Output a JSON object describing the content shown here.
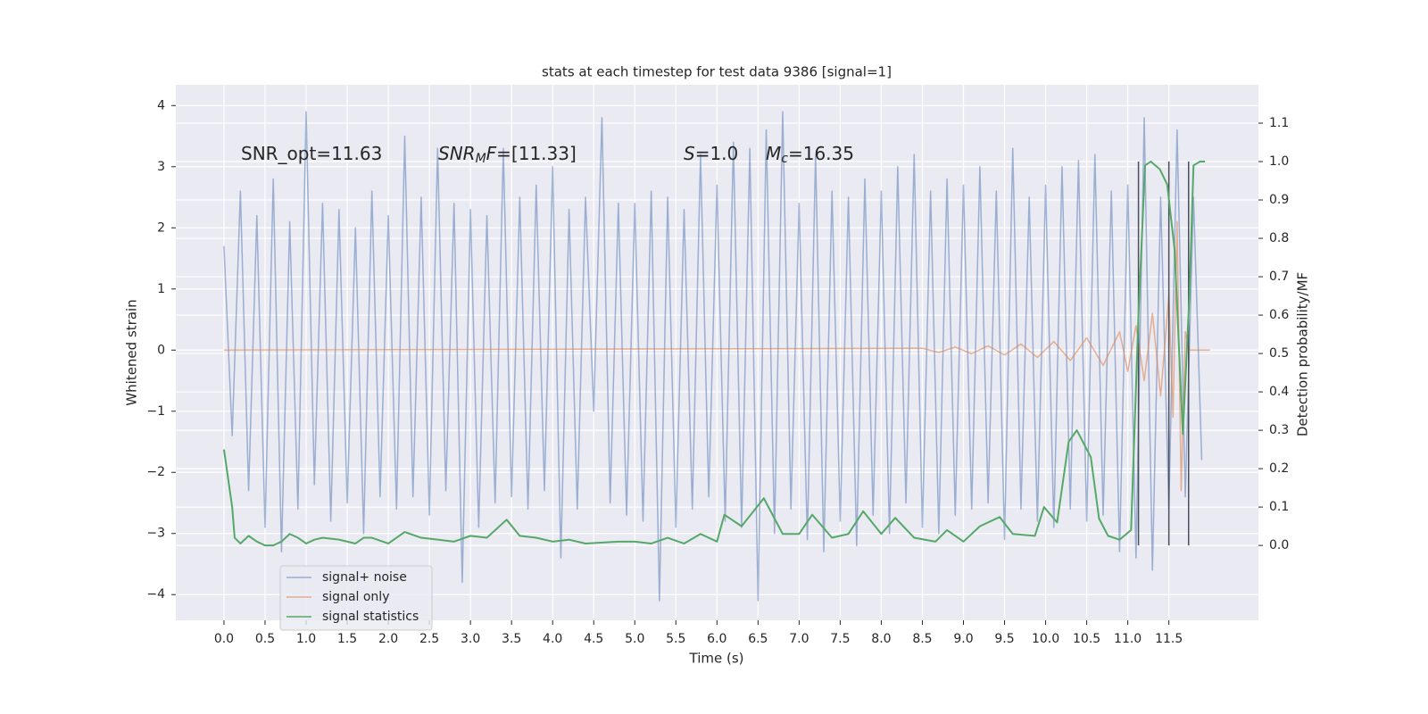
{
  "chart_data": {
    "type": "line",
    "title": "stats at each timestep for test data 9386 [signal=1]",
    "xlabel": "Time (s)",
    "ylabel": "Whitened strain",
    "y2label": "Detection probability/MF",
    "xlim": [
      -0.586,
      12.59
    ],
    "ylim": [
      -4.42,
      4.34
    ],
    "y2lim": [
      -0.195,
      1.2
    ],
    "xticks": [
      {
        "value": 0,
        "label": "0.0"
      },
      0.5,
      {
        "value": 1,
        "label": "1.0"
      },
      1.5,
      {
        "value": 2,
        "label": "2.0"
      },
      2.5,
      {
        "value": 3,
        "label": "3.0"
      },
      3.5,
      {
        "value": 4,
        "label": "4.0"
      },
      4.5,
      {
        "value": 5,
        "label": "5.0"
      },
      5.5,
      {
        "value": 6,
        "label": "6.0"
      },
      6.5,
      {
        "value": 7,
        "label": "7.0"
      },
      7.5,
      {
        "value": 8,
        "label": "8.0"
      },
      8.5,
      {
        "value": 9,
        "label": "9.0"
      },
      9.5,
      {
        "value": 10,
        "label": "10.0"
      },
      10.5,
      {
        "value": 11,
        "label": "11.0"
      },
      11.5
    ],
    "yticks": [
      {
        "value": -4,
        "label": "−4"
      },
      {
        "value": -3,
        "label": "−3"
      },
      {
        "value": -2,
        "label": "−2"
      },
      {
        "value": -1,
        "label": "−1"
      },
      0,
      1,
      2,
      3,
      4
    ],
    "y2ticks": [
      {
        "value": 0,
        "label": "0.0"
      },
      0.1,
      0.2,
      0.3,
      0.4,
      0.5,
      0.6,
      0.7,
      0.8,
      0.9,
      {
        "value": 1,
        "label": "1.0"
      },
      1.1
    ],
    "grid": true,
    "legend": "lower left",
    "series": [
      {
        "name": "signal+ noise",
        "color": "#4c72b0",
        "opacity": 0.5,
        "x": [
          0,
          0.1,
          0.2,
          0.3,
          0.4,
          0.5,
          0.6,
          0.7,
          0.8,
          0.9,
          1,
          1.1,
          1.2,
          1.3,
          1.4,
          1.5,
          1.6,
          1.7,
          1.8,
          1.9,
          2,
          2.1,
          2.2,
          2.3,
          2.4,
          2.5,
          2.6,
          2.7,
          2.8,
          2.9,
          3,
          3.1,
          3.2,
          3.3,
          3.4,
          3.5,
          3.6,
          3.7,
          3.8,
          3.9,
          4,
          4.1,
          4.2,
          4.3,
          4.4,
          4.5,
          4.6,
          4.7,
          4.8,
          4.9,
          5,
          5.1,
          5.2,
          5.3,
          5.4,
          5.5,
          5.6,
          5.7,
          5.8,
          5.9,
          6,
          6.1,
          6.2,
          6.3,
          6.4,
          6.5,
          6.6,
          6.7,
          6.8,
          6.9,
          7,
          7.1,
          7.2,
          7.3,
          7.4,
          7.5,
          7.6,
          7.7,
          7.8,
          7.9,
          8,
          8.1,
          8.2,
          8.3,
          8.4,
          8.5,
          8.6,
          8.7,
          8.8,
          8.9,
          9,
          9.1,
          9.2,
          9.3,
          9.4,
          9.5,
          9.6,
          9.7,
          9.8,
          9.9,
          10,
          10.1,
          10.2,
          10.3,
          10.4,
          10.5,
          10.6,
          10.7,
          10.8,
          10.9,
          11,
          11.1,
          11.2,
          11.3,
          11.4,
          11.5,
          11.6,
          11.7,
          11.8,
          11.9
        ],
        "values": [
          1.7,
          -1.4,
          2.6,
          -2.3,
          2.2,
          -2.9,
          2.8,
          -3.3,
          2.1,
          -2.6,
          3.9,
          -2.2,
          2.4,
          -2.8,
          2.3,
          -2.5,
          2.0,
          -3.0,
          2.6,
          -2.4,
          2.2,
          -2.6,
          3.5,
          -2.4,
          2.5,
          -2.7,
          3.3,
          -2.3,
          2.4,
          -3.8,
          2.3,
          -2.9,
          2.2,
          -2.5,
          3.3,
          -2.4,
          2.5,
          -2.6,
          2.7,
          -2.3,
          3.0,
          -3.4,
          2.3,
          -2.6,
          2.5,
          -1.0,
          3.8,
          -2.5,
          2.4,
          -2.7,
          2.4,
          -2.8,
          2.6,
          -4.1,
          2.5,
          -2.9,
          2.3,
          -2.6,
          3.2,
          -2.4,
          2.7,
          -2.8,
          3.4,
          -2.9,
          3.3,
          -4.1,
          3.6,
          -3.0,
          3.9,
          -2.6,
          2.4,
          -3.1,
          3.2,
          -3.3,
          2.6,
          -2.8,
          2.5,
          -3.2,
          2.8,
          -2.7,
          2.6,
          -3.0,
          3.0,
          -2.5,
          3.2,
          -2.9,
          2.6,
          -3.0,
          2.8,
          -2.7,
          2.7,
          -2.6,
          3.0,
          -2.5,
          2.6,
          -3.1,
          3.3,
          -2.6,
          2.5,
          -2.8,
          2.7,
          -2.9,
          3.0,
          -2.6,
          3.1,
          -2.8,
          3.2,
          -2.7,
          2.6,
          -3.3,
          2.7,
          -3.4,
          3.8,
          -3.6,
          2.5,
          -2.6,
          3.6,
          -2.4,
          2.5,
          -1.8
        ]
      },
      {
        "name": "signal only",
        "color": "#dd8452",
        "opacity": 0.6,
        "x": [
          0,
          8.5,
          8.7,
          8.9,
          9.1,
          9.3,
          9.5,
          9.7,
          9.9,
          10.1,
          10.3,
          10.5,
          10.7,
          10.9,
          11.0,
          11.1,
          11.2,
          11.3,
          11.4,
          11.5,
          11.55,
          11.6,
          11.65,
          11.7,
          11.75,
          12.0
        ],
        "values": [
          0,
          0.03,
          -0.04,
          0.05,
          -0.06,
          0.07,
          -0.08,
          0.1,
          -0.12,
          0.14,
          -0.17,
          0.2,
          -0.25,
          0.3,
          -0.35,
          0.4,
          -0.5,
          0.6,
          -0.75,
          0.9,
          -1.1,
          2.1,
          -2.3,
          0.3,
          0,
          0
        ]
      },
      {
        "name": "signal statistics",
        "color": "#55a868",
        "axis": "y2",
        "opacity": 1,
        "x": [
          0,
          0.1,
          0.13,
          0.2,
          0.3,
          0.4,
          0.5,
          0.6,
          0.7,
          0.8,
          0.9,
          1.0,
          1.1,
          1.2,
          1.4,
          1.6,
          1.7,
          1.8,
          2.0,
          2.2,
          2.4,
          2.6,
          2.8,
          3.0,
          3.2,
          3.44,
          3.6,
          3.8,
          4.0,
          4.2,
          4.4,
          4.8,
          5.0,
          5.2,
          5.4,
          5.6,
          5.8,
          6.0,
          6.09,
          6.3,
          6.57,
          6.8,
          7.0,
          7.16,
          7.4,
          7.6,
          7.78,
          8.0,
          8.17,
          8.4,
          8.66,
          8.8,
          9.0,
          9.2,
          9.44,
          9.6,
          9.87,
          9.98,
          10.14,
          10.28,
          10.38,
          10.55,
          10.65,
          10.76,
          10.9,
          11.04,
          11.13,
          11.21,
          11.28,
          11.39,
          11.48,
          11.57,
          11.67,
          11.75,
          11.8,
          11.88,
          11.94
        ],
        "values": [
          0.25,
          0.1,
          0.02,
          0.005,
          0.025,
          0.01,
          0.0,
          0.0,
          0.01,
          0.03,
          0.02,
          0.005,
          0.015,
          0.02,
          0.015,
          0.005,
          0.02,
          0.02,
          0.005,
          0.035,
          0.02,
          0.015,
          0.01,
          0.025,
          0.02,
          0.067,
          0.025,
          0.02,
          0.01,
          0.015,
          0.005,
          0.01,
          0.01,
          0.005,
          0.02,
          0.005,
          0.03,
          0.01,
          0.08,
          0.05,
          0.123,
          0.03,
          0.03,
          0.08,
          0.02,
          0.03,
          0.089,
          0.03,
          0.072,
          0.02,
          0.01,
          0.04,
          0.01,
          0.05,
          0.074,
          0.03,
          0.025,
          0.1,
          0.06,
          0.27,
          0.3,
          0.23,
          0.07,
          0.025,
          0.015,
          0.04,
          0.6,
          0.99,
          1.0,
          0.98,
          0.94,
          0.77,
          0.29,
          0.65,
          0.99,
          1.0,
          1.0
        ]
      }
    ],
    "vlines": {
      "x": [
        11.13,
        11.5,
        11.74
      ],
      "axis": "y2",
      "from": 0,
      "to": 1,
      "color": "#4a4f5c"
    },
    "annotations": [
      {
        "parts": [
          {
            "text": "SNR_opt=11.63"
          }
        ]
      },
      {
        "parts": [
          {
            "text": "SNR",
            "style": "italic"
          },
          {
            "text": "M",
            "style": "italic-sub"
          },
          {
            "text": "F",
            "style": "italic"
          },
          {
            "text": "=[11.33]"
          }
        ]
      },
      {
        "parts": [
          {
            "text": "S",
            "style": "italic"
          },
          {
            "text": "=1.0"
          }
        ]
      },
      {
        "parts": [
          {
            "text": "M",
            "style": "italic"
          },
          {
            "text": "c",
            "style": "italic-sub"
          },
          {
            "text": "=16.35"
          }
        ]
      }
    ]
  }
}
